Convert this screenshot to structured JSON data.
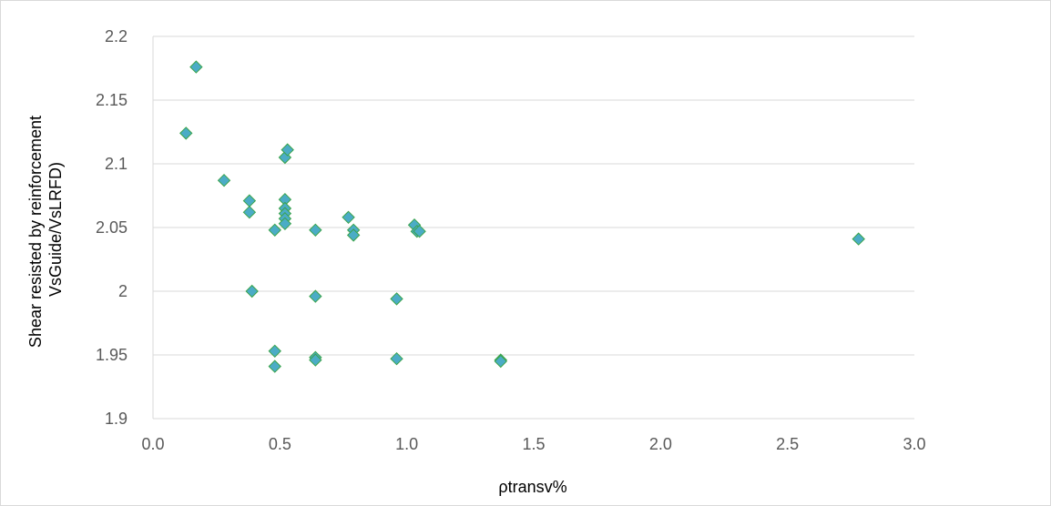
{
  "chart_data": {
    "type": "scatter",
    "title": "",
    "xlabel": "ρtransv%",
    "ylabel_lines": [
      "Shear resisted by reinforcement",
      "VsGuide/VsLRFD)"
    ],
    "xlim": [
      0,
      3.0
    ],
    "ylim": [
      1.9,
      2.2
    ],
    "x_ticks": [
      "0.0",
      "0.5",
      "1.0",
      "1.5",
      "2.0",
      "2.5",
      "3.0"
    ],
    "y_ticks": [
      "1.9",
      "1.95",
      "2",
      "2.05",
      "2.1",
      "2.15",
      "2.2"
    ],
    "grid": "horizontal",
    "legend": "none",
    "marker_fill": "#4bacc6",
    "marker_edge": "#3aa34a",
    "points": [
      {
        "x": 0.13,
        "y": 2.124
      },
      {
        "x": 0.17,
        "y": 2.176
      },
      {
        "x": 0.28,
        "y": 2.087
      },
      {
        "x": 0.38,
        "y": 2.071
      },
      {
        "x": 0.38,
        "y": 2.062
      },
      {
        "x": 0.39,
        "y": 2.0
      },
      {
        "x": 0.48,
        "y": 2.048
      },
      {
        "x": 0.48,
        "y": 1.953
      },
      {
        "x": 0.48,
        "y": 1.941
      },
      {
        "x": 0.52,
        "y": 2.105
      },
      {
        "x": 0.53,
        "y": 2.111
      },
      {
        "x": 0.52,
        "y": 2.072
      },
      {
        "x": 0.52,
        "y": 2.065
      },
      {
        "x": 0.52,
        "y": 2.061
      },
      {
        "x": 0.52,
        "y": 2.057
      },
      {
        "x": 0.52,
        "y": 2.053
      },
      {
        "x": 0.64,
        "y": 2.048
      },
      {
        "x": 0.64,
        "y": 1.996
      },
      {
        "x": 0.64,
        "y": 1.948
      },
      {
        "x": 0.64,
        "y": 1.946
      },
      {
        "x": 0.77,
        "y": 2.058
      },
      {
        "x": 0.79,
        "y": 2.048
      },
      {
        "x": 0.79,
        "y": 2.044
      },
      {
        "x": 0.96,
        "y": 1.994
      },
      {
        "x": 0.96,
        "y": 1.947
      },
      {
        "x": 1.03,
        "y": 2.052
      },
      {
        "x": 1.04,
        "y": 2.047
      },
      {
        "x": 1.05,
        "y": 2.047
      },
      {
        "x": 1.37,
        "y": 1.946
      },
      {
        "x": 1.37,
        "y": 1.945
      },
      {
        "x": 2.78,
        "y": 2.041
      }
    ]
  }
}
